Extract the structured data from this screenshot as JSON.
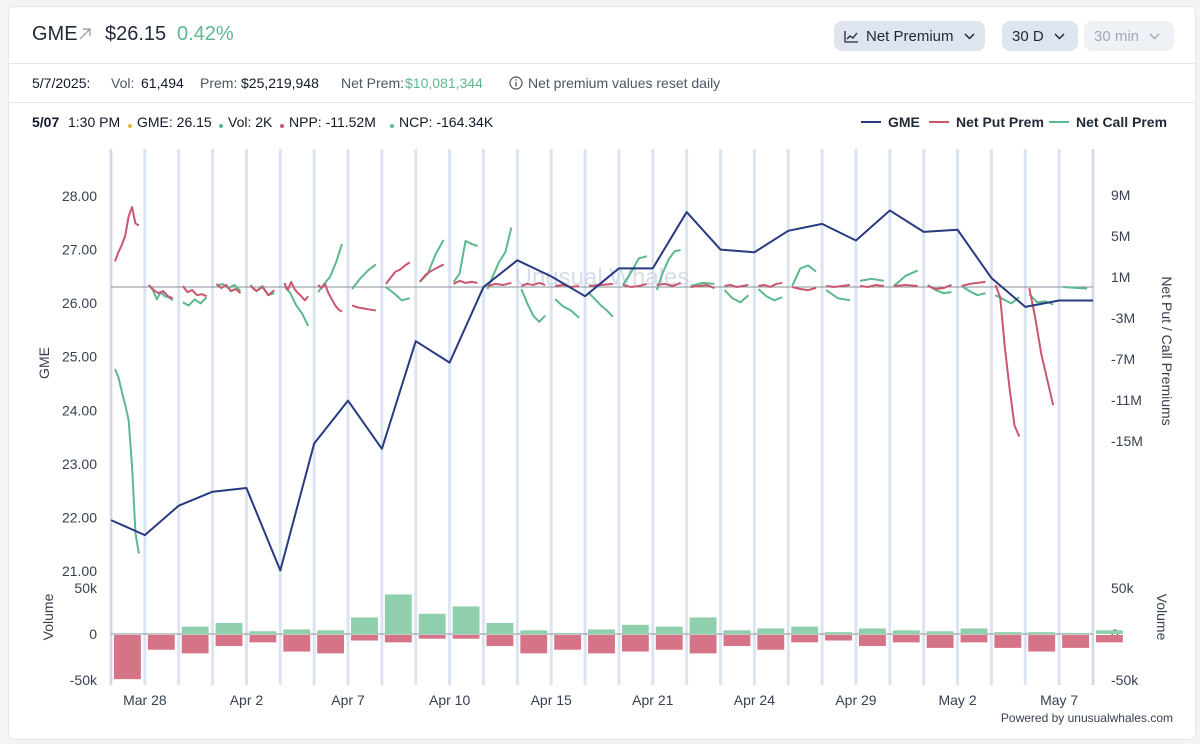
{
  "header": {
    "ticker": "GME",
    "price": "$26.15",
    "change": "0.42%",
    "controls": {
      "metric": "Net Premium",
      "range": "30 D",
      "interval": "30 min"
    }
  },
  "info": {
    "date": "5/7/2025:",
    "vol_label": "Vol:",
    "vol_value": "61,494",
    "prem_label": "Prem:",
    "prem_value": "$25,219,948",
    "net_prem_label": "Net Prem:",
    "net_prem_value": "$10,081,344",
    "reset_note": "Net premium values reset daily"
  },
  "tooltip": {
    "date": "5/07",
    "time": "1:30 PM",
    "gme": "GME: 26.15",
    "vol": "Vol: 2K",
    "npp": "NPP: -11.52M",
    "ncp": "NCP: -164.34K"
  },
  "legend": [
    {
      "name": "GME",
      "color": "#283a80"
    },
    {
      "name": "Net Put Prem",
      "color": "#c9576f"
    },
    {
      "name": "Net Call Prem",
      "color": "#5cb88f"
    }
  ],
  "powered_by": "Powered by unusualwhales.com",
  "watermark": "Unusual Whales",
  "chart_data": [
    {
      "type": "line",
      "ylabel": "GME",
      "y2label": "Net Put / Call Premiums",
      "ylim": [
        21.0,
        28.0
      ],
      "y_ticks": [
        "28.00",
        "27.00",
        "26.00",
        "25.00",
        "24.00",
        "23.00",
        "22.00",
        "21.00"
      ],
      "y2_ticks": [
        "9M",
        "5M",
        "1M",
        "-3M",
        "-7M",
        "-11M",
        "-15M"
      ],
      "x_ticks": [
        "Mar 28",
        "Apr 2",
        "Apr 7",
        "Apr 10",
        "Apr 15",
        "Apr 21",
        "Apr 24",
        "Apr 29",
        "May 2",
        "May 7"
      ],
      "series": [
        {
          "name": "GME",
          "color": "#283a80",
          "values": [
            21.95,
            21.67,
            22.22,
            22.48,
            22.55,
            21.01,
            23.38,
            24.18,
            23.28,
            25.29,
            24.89,
            26.3,
            26.8,
            26.5,
            26.13,
            26.65,
            26.65,
            27.7,
            27.0,
            26.95,
            27.35,
            27.48,
            27.17,
            27.73,
            27.33,
            27.37,
            26.47,
            25.93,
            26.05,
            26.05
          ]
        },
        {
          "name": "Net Put Prem",
          "color": "#c9576f",
          "segments": [
            [
              2.5,
              3.4,
              4.1,
              5.0,
              6.9,
              7.8,
              6.2,
              6.0
            ],
            [
              0.2,
              -0.3,
              -0.6,
              -0.4,
              -0.9,
              -1.1
            ],
            [
              0.1,
              -0.5,
              -0.3,
              -0.8,
              -0.7,
              -0.9
            ],
            [
              0.3,
              -0.1,
              0.2,
              -0.4,
              -0.2,
              -0.6
            ],
            [
              0.1,
              -0.4,
              0.0,
              -0.8,
              -0.3
            ],
            [
              0.4,
              -0.3,
              0.5,
              -0.2,
              -0.6,
              -0.9,
              -1.3,
              -0.9
            ],
            [
              0.2,
              -0.1,
              0.3,
              -0.6,
              -1.2,
              -1.8,
              -2.2,
              -2.4
            ],
            [
              -1.8,
              -2.0,
              -2.1,
              -2.2,
              -2.3
            ],
            [
              0.3,
              0.9,
              1.5,
              1.7,
              2.1,
              2.4
            ],
            [
              0.5,
              1.2,
              1.6,
              1.9,
              2.2
            ],
            [
              0.3,
              0.6,
              0.4,
              0.5,
              0.4
            ],
            [
              0.1,
              0.3,
              0.2,
              0.4
            ],
            [
              0.1,
              0.3,
              0.2,
              0.4,
              0.2
            ],
            [
              0.1,
              0.2,
              0.0,
              0.1
            ],
            [
              0.1,
              0.2,
              0.3
            ],
            [
              0.2,
              0.0,
              0.1,
              0.3
            ],
            [
              0.2,
              0.3,
              0.1,
              0.4
            ],
            [
              0.0,
              0.1,
              0.2,
              -0.1
            ],
            [
              0.1,
              0.2,
              0.0,
              0.1,
              0.2
            ],
            [
              0.1,
              0.2,
              0.0,
              0.3,
              0.4
            ],
            [
              0.0,
              -0.2,
              -0.3,
              -0.1
            ],
            [
              0.1,
              0.0,
              0.1,
              0.2
            ],
            [
              0.1,
              0.0,
              0.2,
              0.1
            ],
            [
              0.1,
              0.2,
              0.1
            ],
            [
              0.1,
              -0.2,
              -0.1,
              0.2
            ],
            [
              0.1,
              0.3,
              0.4,
              0.5
            ],
            [
              0.2,
              -1.0,
              -6.0,
              -10.0,
              -13.5,
              -14.6
            ],
            [
              -0.1,
              -3.0,
              -6.5,
              -9.0,
              -11.52
            ]
          ]
        },
        {
          "name": "Net Call Prem",
          "color": "#5cb88f",
          "segments": [
            [
              -8.0,
              -8.8,
              -10.2,
              -11.5,
              -13.0,
              -17.5,
              -24.0,
              -26.0
            ],
            [
              0.2,
              -0.3,
              -1.2,
              -0.5,
              -0.9,
              -1.0,
              -1.3
            ],
            [
              -1.5,
              -1.8,
              -1.2,
              -1.6,
              -1.0
            ],
            [
              0.1,
              0.3,
              -0.1,
              0.2,
              -0.4
            ],
            [
              0.2,
              -0.4,
              0.1,
              -0.8,
              -0.6
            ],
            [
              0.1,
              -0.6,
              -1.8,
              -2.6,
              -3.8
            ],
            [
              -0.5,
              0.3,
              1.0,
              2.4,
              4.2
            ],
            [
              -0.2,
              0.8,
              1.6,
              2.2
            ],
            [
              0.0,
              -0.6,
              -1.3,
              -1.1
            ],
            [
              0.5,
              1.3,
              3.2,
              4.6
            ],
            [
              0.5,
              1.3,
              4.5,
              4.2,
              4.0
            ],
            [
              -0.2,
              1.2,
              2.5,
              3.4,
              5.8
            ],
            [
              -0.2,
              -1.6,
              -2.8,
              -3.4,
              -2.8
            ],
            [
              -1.2,
              -1.9,
              -2.3,
              -3.0
            ],
            [
              -0.6,
              -1.2,
              -1.8,
              -2.3,
              -2.9
            ],
            [
              0.2,
              1.4,
              2.8,
              3.0
            ],
            [
              -0.3,
              1.4,
              2.7,
              3.5,
              3.6
            ],
            [
              0.1,
              0.4,
              0.3
            ],
            [
              -0.3,
              -1.1,
              -1.5,
              -0.8
            ],
            [
              -0.2,
              -0.9,
              -1.3,
              -1.0
            ],
            [
              0.1,
              1.8,
              2.1,
              1.5
            ],
            [
              -0.3,
              -1.1,
              -1.3
            ],
            [
              0.6,
              0.8,
              0.6
            ],
            [
              0.1,
              1.1,
              1.6
            ],
            [
              0.2,
              -0.3,
              -0.6,
              -0.5
            ],
            [
              0.1,
              -0.4,
              -0.8,
              -0.6
            ],
            [
              -0.8,
              -1.2,
              -1.6,
              -1.0
            ],
            [
              -0.7,
              -1.5,
              -1.4,
              -1.7
            ],
            [
              0.0,
              -0.16
            ]
          ]
        }
      ]
    },
    {
      "type": "bar",
      "ylabel": "Volume",
      "y_ticks": [
        "50k",
        "0",
        "-50k"
      ],
      "y2_ticks": [
        "50k",
        "0",
        "-50k"
      ],
      "ylim": [
        -50000,
        50000
      ],
      "series": [
        {
          "name": "Calls",
          "color": "#8fcfad",
          "values": [
            0,
            0,
            8000,
            12000,
            3000,
            5000,
            4000,
            18000,
            43000,
            22000,
            30000,
            12000,
            4000,
            1000,
            5000,
            10000,
            8000,
            18000,
            4000,
            6000,
            8000,
            2000,
            6000,
            4000,
            3000,
            6000,
            2000,
            2000,
            1000,
            4000
          ]
        },
        {
          "name": "Puts",
          "color": "#d47486",
          "values": [
            -48000,
            -16000,
            -20000,
            -12000,
            -8000,
            -18000,
            -20000,
            -6000,
            -8000,
            -4000,
            -4000,
            -12000,
            -20000,
            -16000,
            -20000,
            -18000,
            -16000,
            -20000,
            -12000,
            -16000,
            -8000,
            -6000,
            -12000,
            -8000,
            -14000,
            -8000,
            -14000,
            -18000,
            -14000,
            -8000
          ]
        }
      ]
    }
  ]
}
